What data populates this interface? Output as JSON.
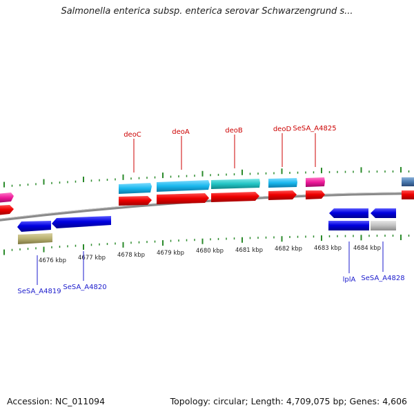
{
  "title": "Salmonella enterica subsp. enterica serovar Schwarzengrund s...",
  "footer": {
    "accession": "Accession: NC_011094",
    "summary": "Topology: circular; Length: 4,709,075 bp; Genes: 4,606"
  },
  "scale": {
    "ticks": [
      "4676 kbp",
      "4677 kbp",
      "4678 kbp",
      "4679 kbp",
      "4680 kbp",
      "4681 kbp",
      "4682 kbp",
      "4683 kbp",
      "4684 kbp"
    ]
  },
  "genes_top_labels": [
    "deoC",
    "deoA",
    "deoB",
    "deoD",
    "SeSA_A4825"
  ],
  "genes_bottom_labels": [
    "SeSA_A4819",
    "SeSA_A4820",
    "lplA",
    "SeSA_A4828"
  ],
  "colors": {
    "cds_forward": "#ee0000",
    "cds_reverse": "#0000e0",
    "gene_cyan": "#1ab8ee",
    "gene_teal": "#22c4c4",
    "gene_magenta": "#ee1a9a",
    "gene_olive": "#b8b070",
    "gene_grey": "#c0c0c0",
    "gene_steel": "#4a7ab0",
    "tick_green": "#2a8a2a",
    "backbone": "#8a8a8a"
  }
}
